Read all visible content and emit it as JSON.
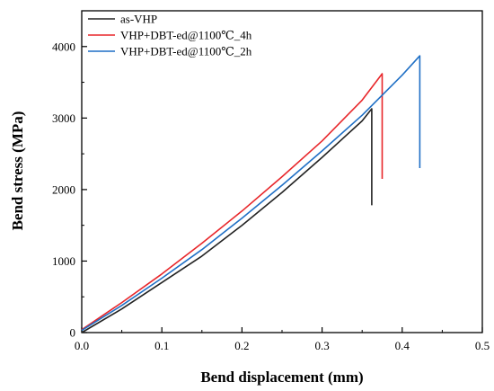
{
  "chart_data": {
    "type": "line",
    "xlabel": "Bend displacement (mm)",
    "ylabel": "Bend stress (MPa)",
    "xlim": [
      0,
      0.5
    ],
    "ylim": [
      0,
      4500
    ],
    "x_ticks": [
      "0.0",
      "0.1",
      "0.2",
      "0.3",
      "0.4",
      "0.5"
    ],
    "y_ticks": [
      "0",
      "1000",
      "2000",
      "3000",
      "4000"
    ],
    "grid": false,
    "legend_position": "top-left",
    "series": [
      {
        "name": "as-VHP",
        "color": "#222222",
        "points": [
          [
            0,
            0
          ],
          [
            0.05,
            330
          ],
          [
            0.1,
            700
          ],
          [
            0.15,
            1070
          ],
          [
            0.2,
            1500
          ],
          [
            0.25,
            1960
          ],
          [
            0.3,
            2450
          ],
          [
            0.35,
            2960
          ],
          [
            0.362,
            3130
          ],
          [
            0.362,
            1780
          ]
        ]
      },
      {
        "name": "VHP+DBT-ed@1100℃_4h",
        "color": "#e8262a",
        "points": [
          [
            0,
            40
          ],
          [
            0.05,
            420
          ],
          [
            0.1,
            820
          ],
          [
            0.15,
            1250
          ],
          [
            0.2,
            1700
          ],
          [
            0.25,
            2180
          ],
          [
            0.3,
            2680
          ],
          [
            0.35,
            3250
          ],
          [
            0.375,
            3620
          ],
          [
            0.375,
            2150
          ]
        ]
      },
      {
        "name": "VHP+DBT-ed@1100℃_2h",
        "color": "#1f6fc5",
        "points": [
          [
            0,
            30
          ],
          [
            0.05,
            380
          ],
          [
            0.1,
            760
          ],
          [
            0.15,
            1160
          ],
          [
            0.2,
            1600
          ],
          [
            0.25,
            2060
          ],
          [
            0.3,
            2540
          ],
          [
            0.35,
            3040
          ],
          [
            0.4,
            3600
          ],
          [
            0.422,
            3870
          ],
          [
            0.422,
            2300
          ]
        ]
      }
    ]
  }
}
